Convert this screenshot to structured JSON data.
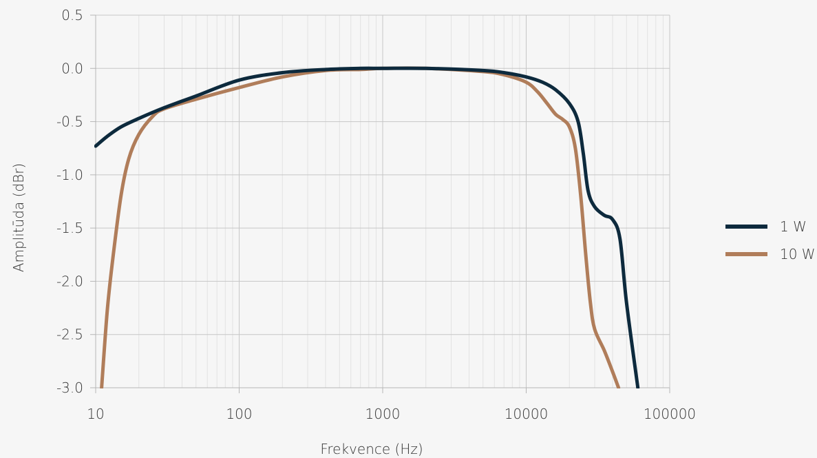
{
  "chart_data": {
    "type": "line",
    "xlabel": "Frekvence (Hz)",
    "ylabel": "Amplitūda (dBr)",
    "x_scale": "log",
    "xlim": [
      10,
      100000
    ],
    "ylim": [
      -3.0,
      0.5
    ],
    "x_ticks": [
      10,
      100,
      1000,
      10000,
      100000
    ],
    "x_tick_labels": [
      "10",
      "100",
      "1000",
      "10000",
      "100000"
    ],
    "y_ticks": [
      0.5,
      0.0,
      -0.5,
      -1.0,
      -1.5,
      -2.0,
      -2.5,
      -3.0
    ],
    "y_tick_labels": [
      "0.5",
      "0.0",
      "-0.5",
      "-1.0",
      "-1.5",
      "-2.0",
      "-2.5",
      "-3.0"
    ],
    "grid": true,
    "legend_position": "right",
    "series": [
      {
        "name": "1 W",
        "color": "#0d2a3d",
        "x": [
          10,
          12,
          15,
          20,
          30,
          50,
          100,
          200,
          400,
          700,
          1000,
          2000,
          5000,
          7000,
          10000,
          13000,
          16000,
          20000,
          23000,
          25000,
          27000,
          30000,
          35000,
          40000,
          45000,
          50000,
          60000
        ],
        "y": [
          -0.73,
          -0.64,
          -0.55,
          -0.47,
          -0.37,
          -0.26,
          -0.11,
          -0.04,
          -0.01,
          0.0,
          0.0,
          0.0,
          -0.02,
          -0.04,
          -0.08,
          -0.13,
          -0.2,
          -0.33,
          -0.5,
          -0.8,
          -1.15,
          -1.3,
          -1.38,
          -1.42,
          -1.6,
          -2.2,
          -3.0
        ]
      },
      {
        "name": "10 W",
        "color": "#b07d5a",
        "x": [
          11,
          12,
          13,
          15,
          17,
          20,
          25,
          30,
          50,
          100,
          200,
          400,
          700,
          1000,
          2000,
          5000,
          7000,
          10000,
          12000,
          14000,
          16000,
          18000,
          20000,
          22000,
          24000,
          26000,
          28000,
          30000,
          35000,
          40000,
          44000
        ],
        "y": [
          -3.0,
          -2.3,
          -1.85,
          -1.2,
          -0.85,
          -0.62,
          -0.45,
          -0.38,
          -0.29,
          -0.18,
          -0.08,
          -0.02,
          -0.01,
          0.0,
          0.0,
          -0.03,
          -0.06,
          -0.13,
          -0.22,
          -0.33,
          -0.43,
          -0.48,
          -0.55,
          -0.75,
          -1.2,
          -1.75,
          -2.2,
          -2.45,
          -2.65,
          -2.85,
          -3.0
        ]
      }
    ]
  }
}
